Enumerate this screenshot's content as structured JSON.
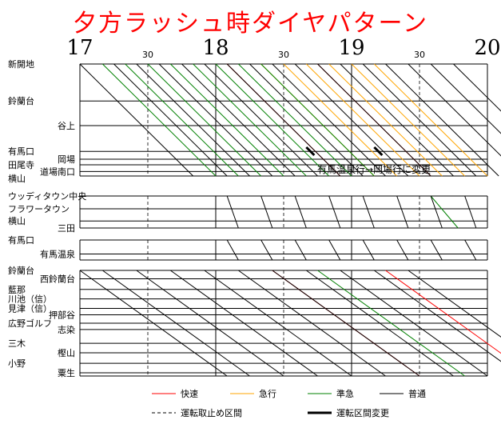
{
  "chart_data": {
    "type": "line",
    "title": "夕方ラッシュ時ダイヤパターン",
    "time_labels": {
      "hours": [
        "17",
        "18",
        "19",
        "20"
      ],
      "half_hours": [
        "30",
        "30",
        "30"
      ]
    },
    "x_range": [
      "17:00",
      "20:00"
    ],
    "grid": true,
    "stations": {
      "section1": {
        "left": [
          {
            "label": "新開地",
            "level": 0
          },
          {
            "label": "鈴蘭台",
            "level": 0.33
          },
          {
            "label": "有馬口",
            "level": 0.78
          },
          {
            "label": "田尾寺",
            "level": 0.9
          },
          {
            "label": "横山",
            "level": 1.02
          }
        ],
        "right": [
          {
            "label": "谷上",
            "level": 0.55
          },
          {
            "label": "岡場",
            "level": 0.85
          },
          {
            "label": "道場南口",
            "level": 0.96
          }
        ]
      },
      "section2": {
        "left": [
          {
            "label": "ウッディタウン中央",
            "level": 0
          },
          {
            "label": "フラワータウン",
            "level": 0.4
          },
          {
            "label": "横山",
            "level": 0.78
          }
        ],
        "right": [
          {
            "label": "三田",
            "level": 1.0
          }
        ]
      },
      "section3": {
        "left": [
          {
            "label": "有馬口",
            "level": 0
          }
        ],
        "right": [
          {
            "label": "有馬温泉",
            "level": 0.7
          }
        ]
      },
      "section4": {
        "left": [
          {
            "label": "鈴蘭台",
            "level": 0
          },
          {
            "label": "藍那",
            "level": 0.18
          },
          {
            "label": "川池（信）",
            "level": 0.27
          },
          {
            "label": "見津（信）",
            "level": 0.36
          },
          {
            "label": "広野ゴルフ",
            "level": 0.5
          },
          {
            "label": "三木",
            "level": 0.69
          },
          {
            "label": "小野",
            "level": 0.88
          }
        ],
        "right": [
          {
            "label": "西鈴蘭台",
            "level": 0.08
          },
          {
            "label": "押部谷",
            "level": 0.42
          },
          {
            "label": "志染",
            "level": 0.56
          },
          {
            "label": "樫山",
            "level": 0.78
          },
          {
            "label": "粟生",
            "level": 0.97
          }
        ]
      }
    },
    "legend": [
      {
        "name": "快速",
        "color": "#ff0000",
        "style": "solid"
      },
      {
        "name": "急行",
        "color": "#ffa500",
        "style": "solid"
      },
      {
        "name": "準急",
        "color": "#008000",
        "style": "solid"
      },
      {
        "name": "普通",
        "color": "#000000",
        "style": "solid"
      },
      {
        "name": "運転取止め区間",
        "color": "#000000",
        "style": "dashed"
      },
      {
        "name": "運転区間変更",
        "color": "#000000",
        "style": "thick"
      }
    ],
    "annotation": "有馬温泉行→岡場行に変更",
    "series": [
      {
        "type": "快速",
        "color": "#ff0000",
        "section": "section1",
        "departures": [
          "18:05",
          "18:45"
        ]
      },
      {
        "type": "急行",
        "color": "#ffa500",
        "section": "section1",
        "departures": [
          "18:20",
          "18:30",
          "18:40",
          "18:50",
          "19:00",
          "19:10"
        ]
      },
      {
        "type": "準急",
        "color": "#008000",
        "section": "section1",
        "departures": [
          "17:10",
          "17:20",
          "17:30",
          "17:40",
          "17:50",
          "18:00",
          "18:10",
          "18:20"
        ]
      },
      {
        "type": "普通",
        "color": "#000000",
        "section": "section1",
        "departures": [
          "17:00",
          "17:15",
          "17:25",
          "17:35",
          "17:45",
          "17:55",
          "18:05",
          "18:15",
          "18:25",
          "18:35",
          "18:45",
          "18:55",
          "19:05",
          "19:15",
          "19:25",
          "19:35",
          "19:45"
        ]
      },
      {
        "type": "準急",
        "color": "#008000",
        "section": "section2",
        "departures": [
          "19:35"
        ]
      },
      {
        "type": "準急",
        "color": "#008000",
        "section": "section4",
        "departures": [
          "18:45"
        ]
      },
      {
        "type": "快速",
        "color": "#ff0000",
        "section": "section4",
        "departures": [
          "18:25",
          "19:15"
        ]
      },
      {
        "type": "普通",
        "color": "#000000",
        "section": "section4",
        "departures": [
          "17:00",
          "17:10",
          "17:25",
          "17:40",
          "17:55",
          "18:10",
          "18:25",
          "18:40",
          "18:55",
          "19:10",
          "19:25"
        ]
      }
    ]
  }
}
